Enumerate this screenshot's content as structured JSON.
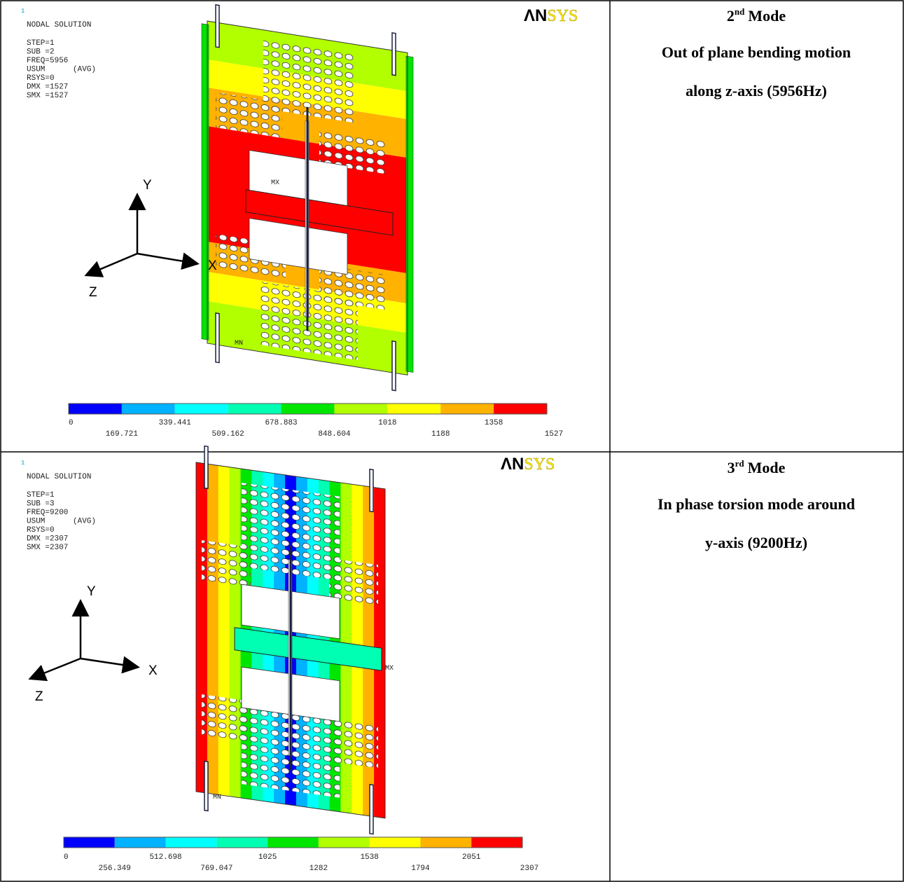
{
  "table": {
    "rows": [
      {
        "plot": {
          "corner": "1",
          "header": "NODAL SOLUTION",
          "info": [
            "STEP=1",
            "SUB =2",
            "FREQ=5956",
            "USUM      (AVG)",
            "RSYS=0",
            "DMX =1527",
            "SMX =1527"
          ],
          "logo": [
            "ΛN",
            "SYS"
          ],
          "axes": [
            "Y",
            "X",
            "Z"
          ],
          "max_marker": "MX",
          "min_marker": "MN",
          "legend": [
            "0",
            "169.721",
            "339.441",
            "509.162",
            "678.883",
            "848.604",
            "1018",
            "1188",
            "1358",
            "1527"
          ]
        },
        "caption": {
          "number": "2",
          "suffix": "nd",
          "word": "Mode",
          "lines": [
            "Out of plane bending motion",
            "along z-axis (5956Hz)"
          ]
        }
      },
      {
        "plot": {
          "corner": "1",
          "header": "NODAL SOLUTION",
          "info": [
            "STEP=1",
            "SUB =3",
            "FREQ=9200",
            "USUM      (AVG)",
            "RSYS=0",
            "DMX =2307",
            "SMX =2307"
          ],
          "logo": [
            "ΛN",
            "SYS"
          ],
          "axes": [
            "Y",
            "X",
            "Z"
          ],
          "max_marker": "MX",
          "min_marker": "MN",
          "legend": [
            "0",
            "256.349",
            "512.698",
            "769.047",
            "1025",
            "1282",
            "1538",
            "1794",
            "2051",
            "2307"
          ]
        },
        "caption": {
          "number": "3",
          "suffix": "rd",
          "word": "Mode",
          "lines": [
            "In phase torsion mode around",
            "y-axis (9200Hz)"
          ]
        }
      }
    ]
  }
}
